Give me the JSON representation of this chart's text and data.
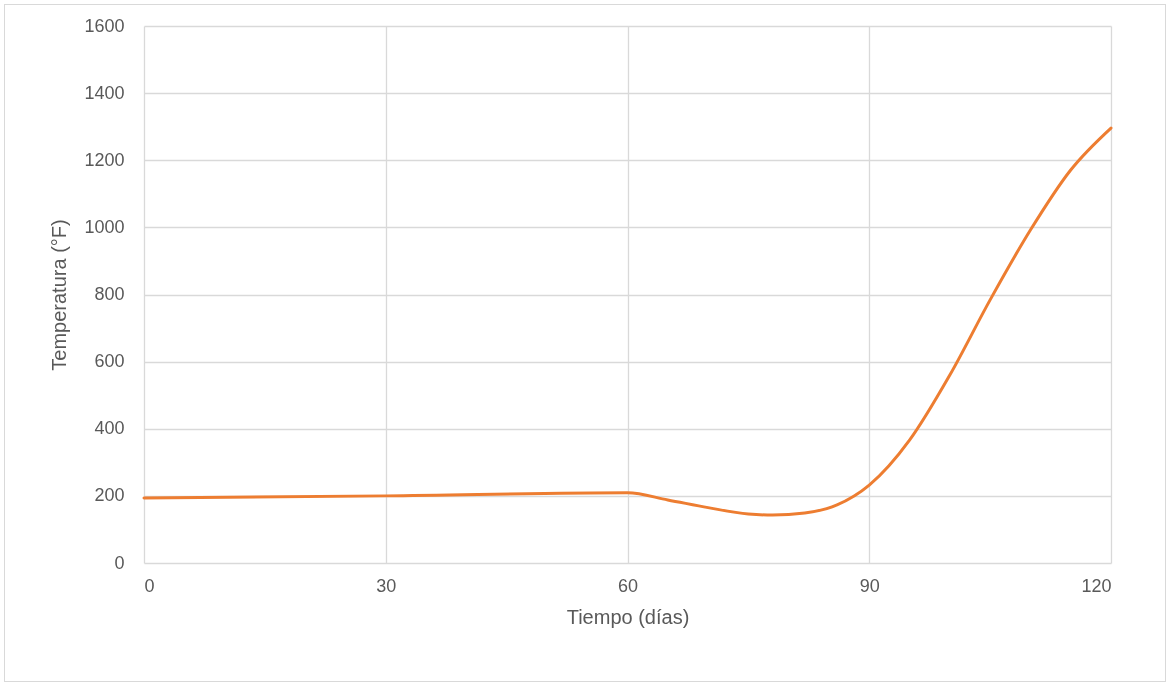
{
  "chart_data": {
    "type": "line",
    "xlabel": "Tiempo (días)",
    "ylabel": "Temperatura (°F)",
    "x": [
      0,
      30,
      60,
      65,
      70,
      75,
      78,
      82,
      86,
      90,
      95,
      100,
      105,
      110,
      115,
      120
    ],
    "series": [
      {
        "color": "#ed7d31",
        "values": [
          194,
          200,
          209,
          188,
          165,
          146,
          143,
          149,
          173,
          232,
          366,
          560,
          784,
          992,
          1171,
          1296
        ]
      }
    ],
    "xlim": [
      0,
      120
    ],
    "xticks": [
      0,
      30,
      60,
      90,
      120
    ],
    "ylim": [
      0,
      1600
    ],
    "yticks": [
      0,
      200,
      400,
      600,
      800,
      1000,
      1200,
      1400,
      1600
    ],
    "grid": true,
    "legend": false,
    "marker": "none",
    "line_style": "solid"
  }
}
